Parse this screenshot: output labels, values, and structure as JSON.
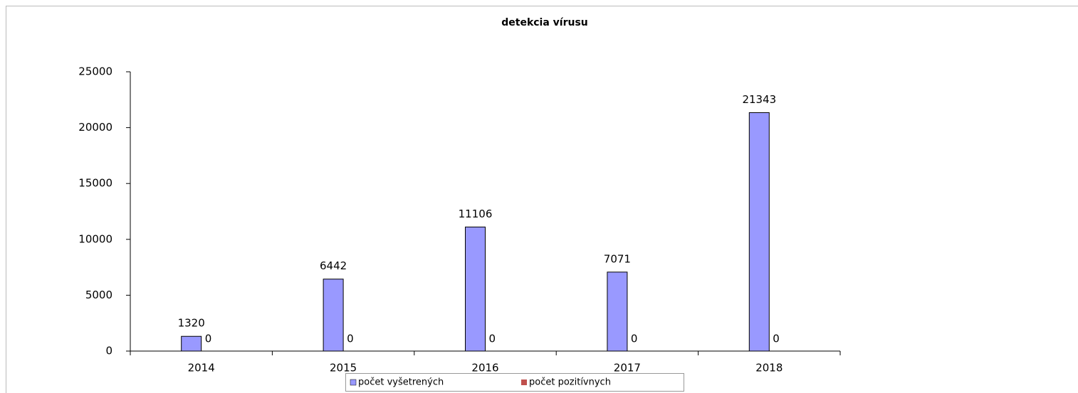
{
  "chart_data": {
    "type": "bar",
    "title": "detekcia vírusu",
    "categories": [
      "2014",
      "2015",
      "2016",
      "2017",
      "2018"
    ],
    "series": [
      {
        "name": "počet vyšetrených",
        "color": "#9999ff",
        "values": [
          1320,
          6442,
          11106,
          7071,
          21343
        ]
      },
      {
        "name": "počet pozitívnych",
        "color": "#c0504d",
        "values": [
          0,
          0,
          0,
          0,
          0
        ]
      }
    ],
    "ylim": [
      0,
      25000
    ],
    "yticks": [
      0,
      5000,
      10000,
      15000,
      20000,
      25000
    ],
    "grid": false,
    "legend": "bottom"
  }
}
